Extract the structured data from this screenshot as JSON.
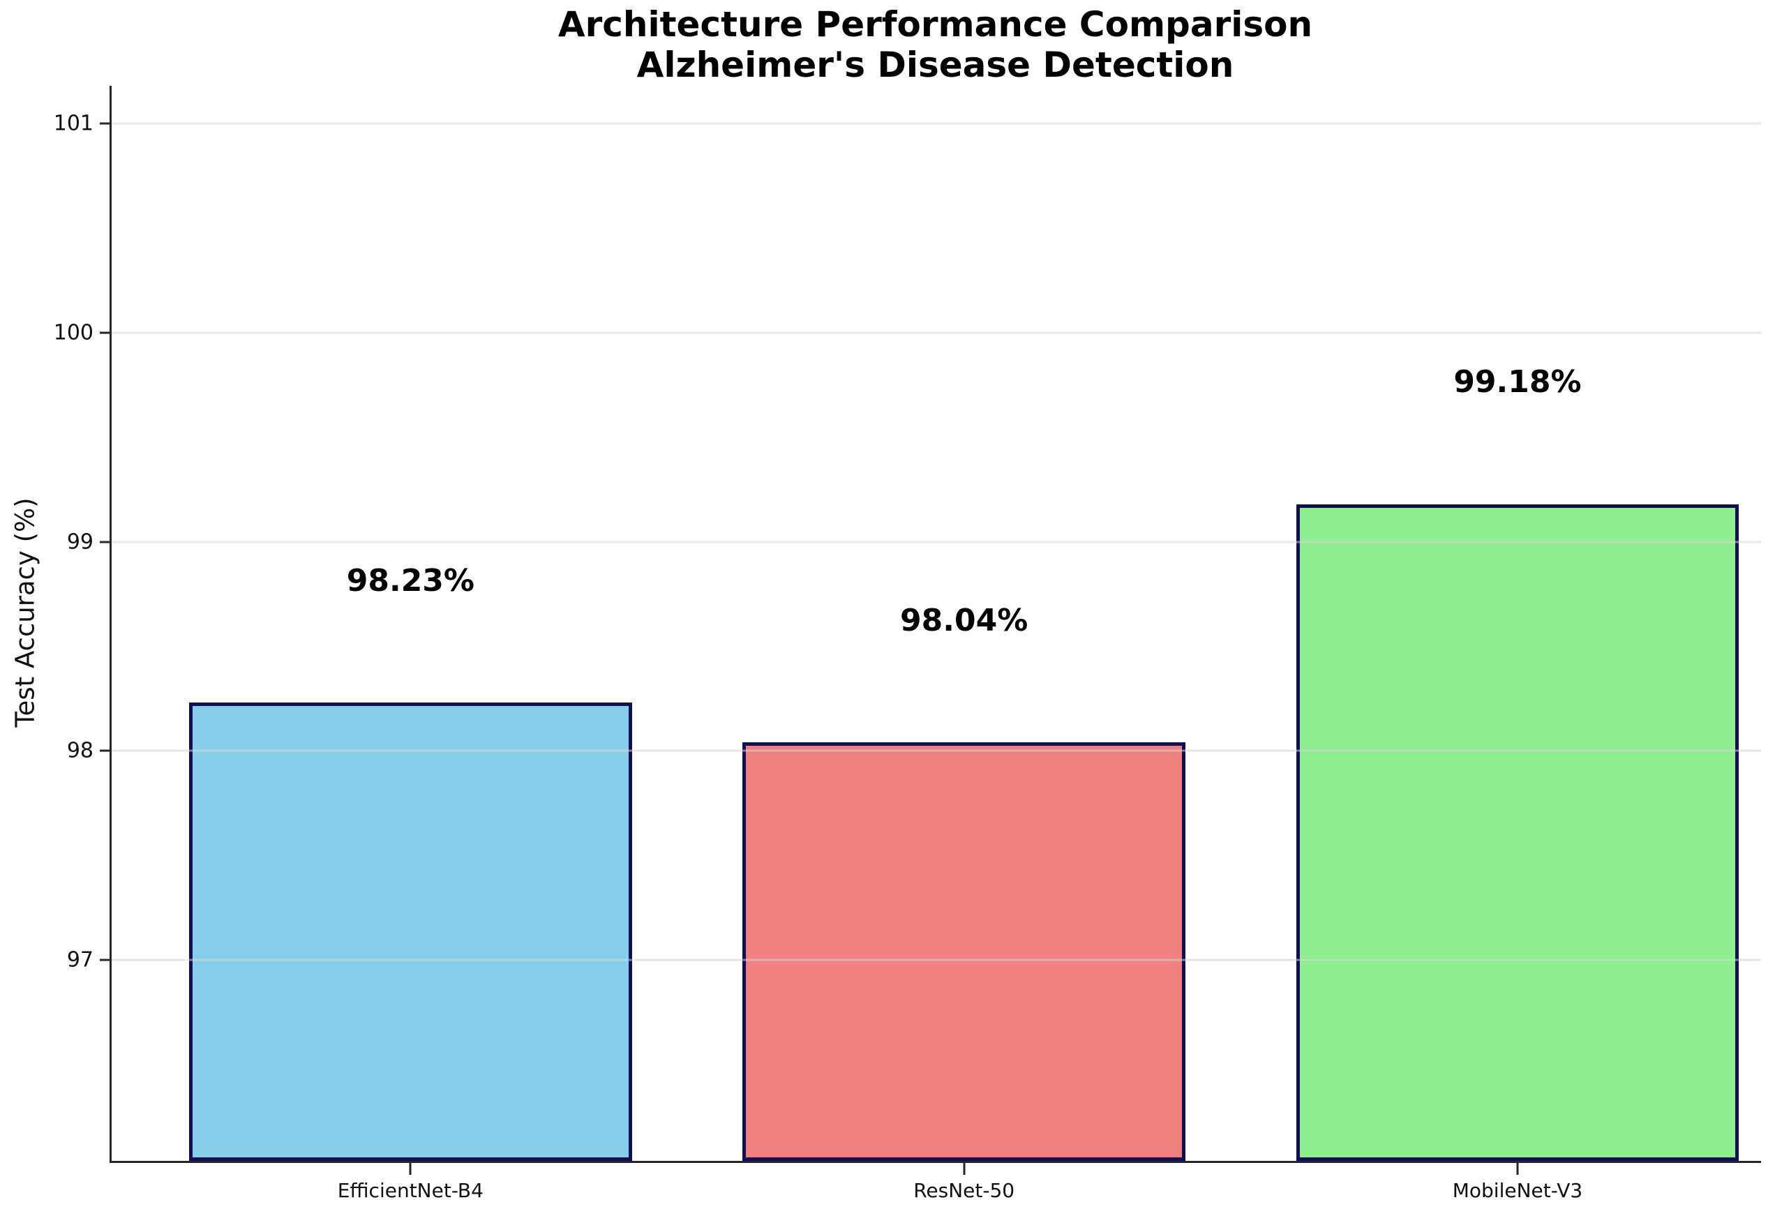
{
  "chart_data": {
    "type": "bar",
    "title": "Architecture Performance Comparison",
    "subtitle": "Alzheimer's Disease Detection",
    "xlabel": "",
    "ylabel": "Test Accuracy (%)",
    "categories": [
      "EfficientNet-B4",
      "ResNet-50",
      "MobileNet-V3"
    ],
    "values": [
      98.23,
      98.04,
      99.18
    ],
    "value_labels": [
      "98.23%",
      "98.04%",
      "99.18%"
    ],
    "bar_colors": [
      "#87CEEB",
      "#F08080",
      "#90EE90"
    ],
    "bar_edge_color": "#0F0F52",
    "spine_color": "#262626",
    "grid_color": "#E9E9E9",
    "yticks": [
      97,
      98,
      99,
      100,
      101
    ],
    "ytick_labels": [
      "97",
      "98",
      "99",
      "100",
      "101"
    ],
    "ylim": [
      96.04,
      101.18
    ],
    "xlim": [
      -0.54,
      2.44
    ],
    "bar_width": 0.8,
    "value_label_offset": 0.5,
    "grid": "horizontal-only",
    "legend_position": "none"
  }
}
